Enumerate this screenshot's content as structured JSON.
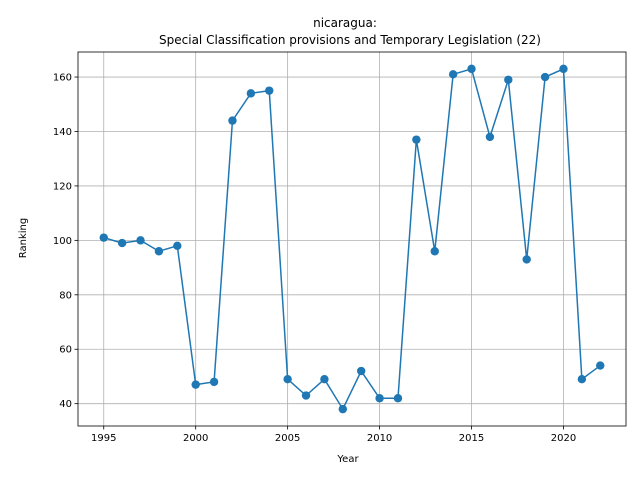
{
  "chart_data": {
    "type": "line",
    "title_line1": "nicaragua:",
    "title_line2": "Special Classification provisions and Temporary Legislation (22)",
    "xlabel": "Year",
    "ylabel": "Ranking",
    "xlim": [
      1993.6,
      2023.4
    ],
    "ylim": [
      31.8,
      169.2
    ],
    "xticks": [
      1995,
      2000,
      2005,
      2010,
      2015,
      2020
    ],
    "yticks": [
      40,
      60,
      80,
      100,
      120,
      140,
      160
    ],
    "grid": true,
    "color": "#1f77b4",
    "marker": "circle",
    "series": [
      {
        "x": [
          1995,
          1996,
          1997,
          1998,
          1999,
          2000,
          2001,
          2002,
          2003,
          2004,
          2005,
          2006,
          2007,
          2008,
          2009,
          2010,
          2011,
          2012,
          2013,
          2014,
          2015,
          2016,
          2017,
          2018,
          2019,
          2020,
          2021,
          2022
        ],
        "y": [
          101,
          99,
          100,
          96,
          98,
          47,
          48,
          144,
          154,
          155,
          49,
          43,
          49,
          38,
          52,
          42,
          42,
          137,
          96,
          161,
          163,
          138,
          159,
          93,
          160,
          163,
          49,
          54
        ]
      }
    ]
  }
}
